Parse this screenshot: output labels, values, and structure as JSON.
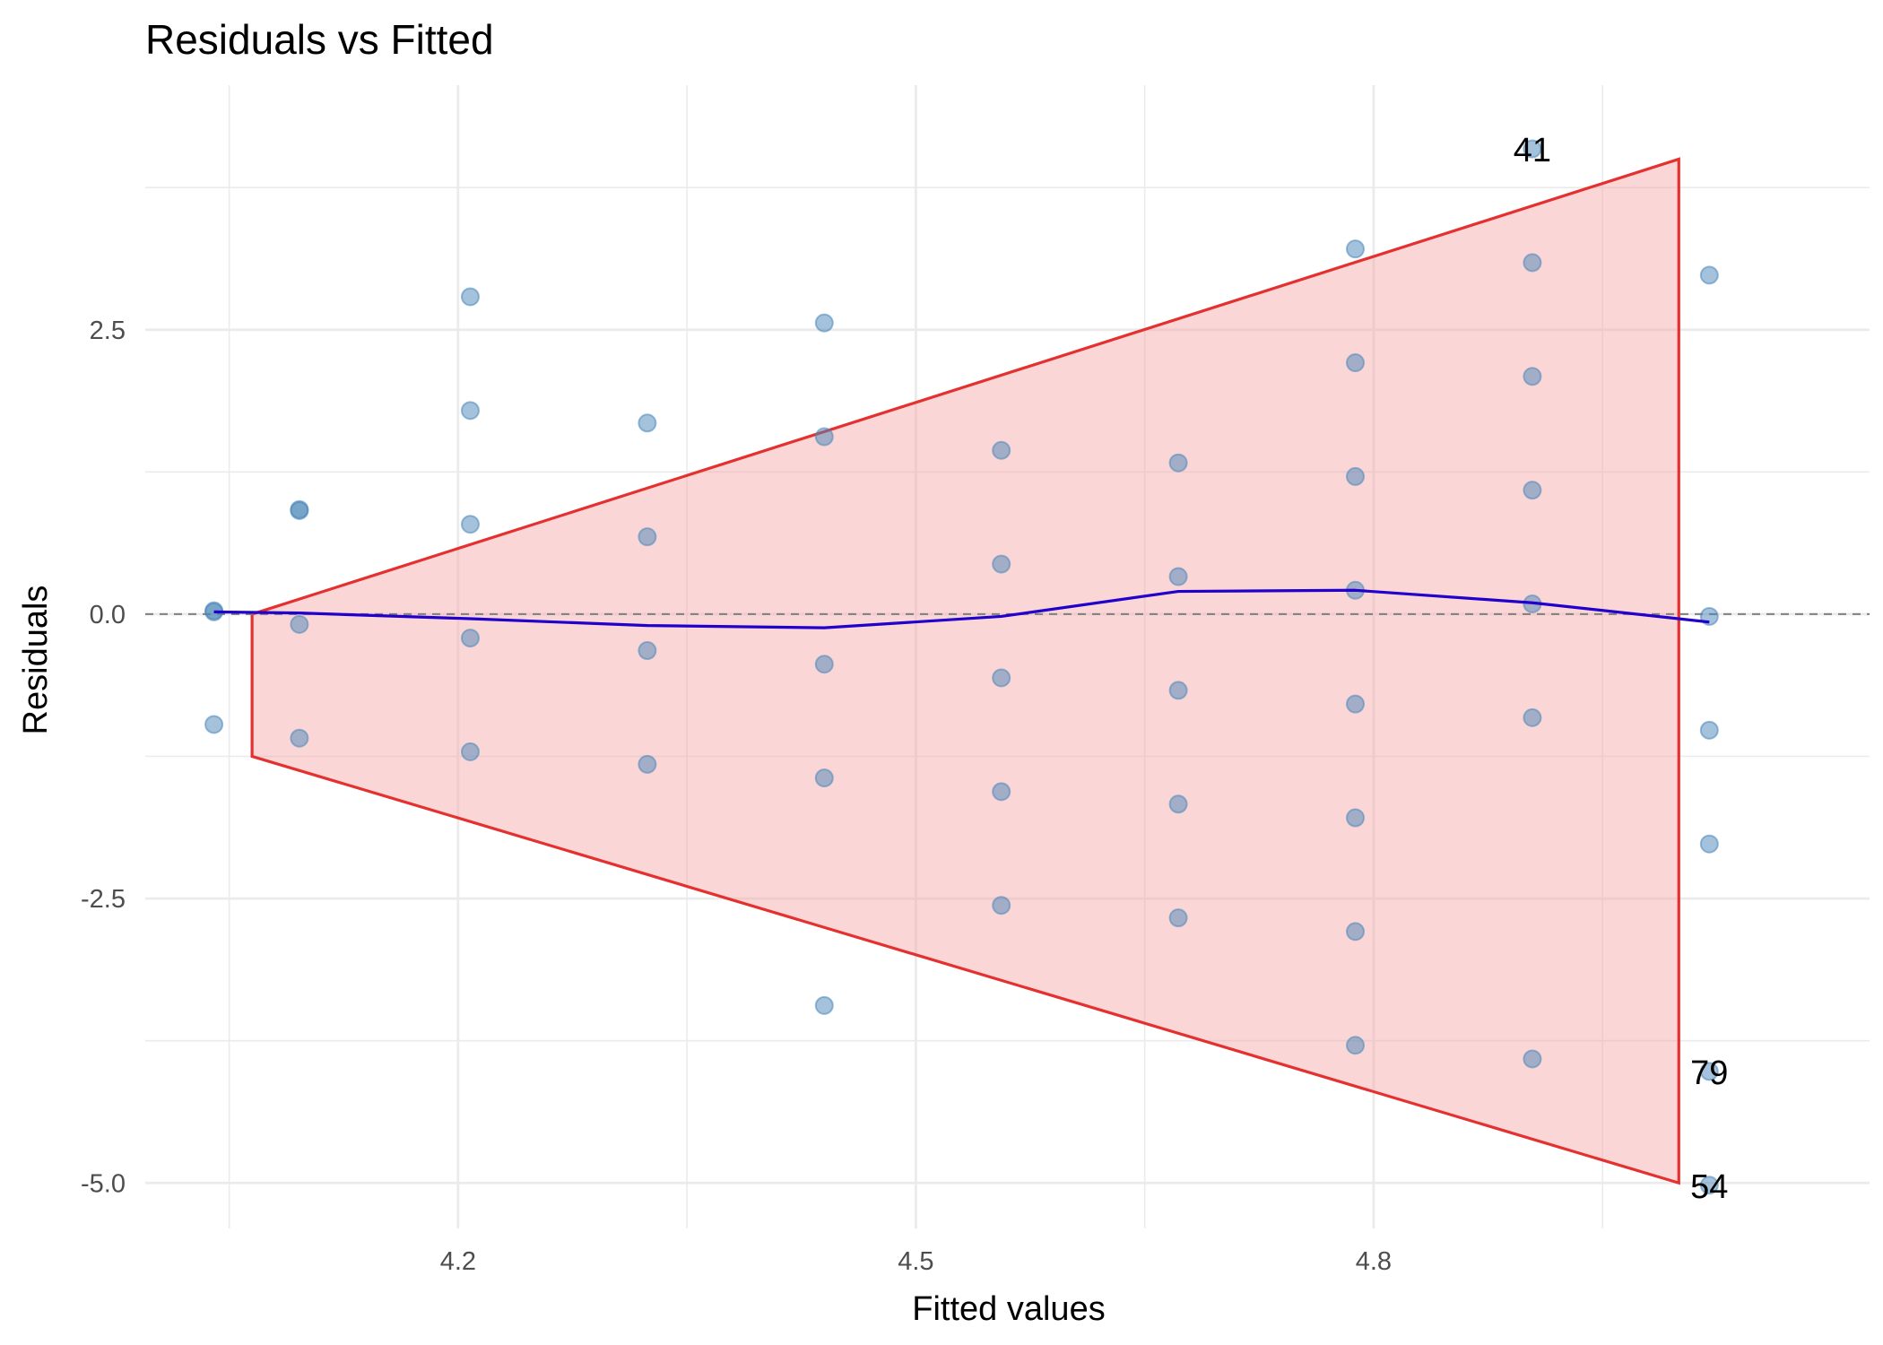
{
  "chart_data": {
    "type": "scatter",
    "title": "Residuals vs Fitted",
    "xlabel": "Fitted values",
    "ylabel": "Residuals",
    "xlim": [
      3.995,
      5.125
    ],
    "ylim": [
      -5.4,
      4.65
    ],
    "x_ticks": [
      4.2,
      4.5,
      4.8
    ],
    "x_tick_labels": [
      "4.2",
      "4.5",
      "4.8"
    ],
    "x_minor_ticks": [
      4.05,
      4.35,
      4.65,
      4.95
    ],
    "y_ticks": [
      -5.0,
      -2.5,
      0.0,
      2.5
    ],
    "y_tick_labels": [
      "-5.0",
      "-2.5",
      "0.0",
      "2.5"
    ],
    "y_minor_ticks": [
      -3.75,
      -1.25,
      1.25,
      3.75
    ],
    "grid": true,
    "reference_line": {
      "y": 0.0,
      "style": "dashed",
      "color": "#7f7f7f"
    },
    "colors": {
      "points": "#4a86b8",
      "smooth": "#2200cc",
      "band_fill": "#f4a3a3",
      "band_edge": "#e53030"
    },
    "points": [
      {
        "x": 4.04,
        "y": 0.03
      },
      {
        "x": 4.04,
        "y": 0.02
      },
      {
        "x": 4.04,
        "y": -0.97
      },
      {
        "x": 4.096,
        "y": 0.92
      },
      {
        "x": 4.096,
        "y": 0.91
      },
      {
        "x": 4.096,
        "y": -0.09
      },
      {
        "x": 4.096,
        "y": -1.09
      },
      {
        "x": 4.208,
        "y": 2.79
      },
      {
        "x": 4.208,
        "y": 1.79
      },
      {
        "x": 4.208,
        "y": 0.79
      },
      {
        "x": 4.208,
        "y": -0.21
      },
      {
        "x": 4.208,
        "y": -1.21
      },
      {
        "x": 4.324,
        "y": 1.68
      },
      {
        "x": 4.324,
        "y": 0.68
      },
      {
        "x": 4.324,
        "y": -0.32
      },
      {
        "x": 4.324,
        "y": -1.32
      },
      {
        "x": 4.44,
        "y": 2.56
      },
      {
        "x": 4.44,
        "y": 1.56
      },
      {
        "x": 4.44,
        "y": -0.44
      },
      {
        "x": 4.44,
        "y": -1.44
      },
      {
        "x": 4.44,
        "y": -3.44
      },
      {
        "x": 4.556,
        "y": 1.44
      },
      {
        "x": 4.556,
        "y": 0.44
      },
      {
        "x": 4.556,
        "y": -0.56
      },
      {
        "x": 4.556,
        "y": -1.56
      },
      {
        "x": 4.556,
        "y": -2.56
      },
      {
        "x": 4.672,
        "y": 1.33
      },
      {
        "x": 4.672,
        "y": 0.33
      },
      {
        "x": 4.672,
        "y": -0.67
      },
      {
        "x": 4.672,
        "y": -1.67
      },
      {
        "x": 4.672,
        "y": -2.67
      },
      {
        "x": 4.788,
        "y": 3.21
      },
      {
        "x": 4.788,
        "y": 2.21
      },
      {
        "x": 4.788,
        "y": 1.21
      },
      {
        "x": 4.788,
        "y": 0.21
      },
      {
        "x": 4.788,
        "y": -0.79
      },
      {
        "x": 4.788,
        "y": -1.79
      },
      {
        "x": 4.788,
        "y": -2.79
      },
      {
        "x": 4.788,
        "y": -3.79
      },
      {
        "x": 4.904,
        "y": 4.09
      },
      {
        "x": 4.904,
        "y": 3.09
      },
      {
        "x": 4.904,
        "y": 2.09
      },
      {
        "x": 4.904,
        "y": 1.09
      },
      {
        "x": 4.904,
        "y": 0.09
      },
      {
        "x": 4.904,
        "y": -0.91
      },
      {
        "x": 4.904,
        "y": -3.91
      },
      {
        "x": 5.02,
        "y": 2.98
      },
      {
        "x": 5.02,
        "y": -0.02
      },
      {
        "x": 5.02,
        "y": -1.02
      },
      {
        "x": 5.02,
        "y": -2.02
      },
      {
        "x": 5.02,
        "y": -4.02
      },
      {
        "x": 5.02,
        "y": -5.02
      }
    ],
    "smooth_line": [
      {
        "x": 4.04,
        "y": 0.02
      },
      {
        "x": 4.096,
        "y": 0.01
      },
      {
        "x": 4.208,
        "y": -0.04
      },
      {
        "x": 4.324,
        "y": -0.1
      },
      {
        "x": 4.44,
        "y": -0.12
      },
      {
        "x": 4.556,
        "y": -0.02
      },
      {
        "x": 4.672,
        "y": 0.2
      },
      {
        "x": 4.788,
        "y": 0.21
      },
      {
        "x": 4.904,
        "y": 0.1
      },
      {
        "x": 5.02,
        "y": -0.07
      }
    ],
    "band_polygon": [
      {
        "x": 4.065,
        "y": 0.0
      },
      {
        "x": 5.0,
        "y": 4.0
      },
      {
        "x": 5.0,
        "y": -5.0
      },
      {
        "x": 4.065,
        "y": -1.25
      }
    ],
    "annotations": [
      {
        "text": "41",
        "x": 4.904,
        "y": 4.09
      },
      {
        "text": "79",
        "x": 5.02,
        "y": -4.02
      },
      {
        "text": "54",
        "x": 5.02,
        "y": -5.02
      }
    ]
  }
}
